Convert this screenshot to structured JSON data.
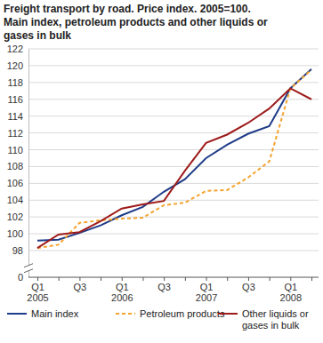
{
  "chart_data": {
    "type": "line",
    "title": [
      "Freight transport by road. Price index. 2005=100.",
      "Main index, petroleum products and other liquids or",
      "gases in bulk"
    ],
    "categories": [
      "Q1 2005",
      null,
      "Q3",
      null,
      "Q1 2006",
      null,
      "Q3",
      null,
      "Q1 2007",
      null,
      "Q3",
      null,
      "Q1 2008",
      null
    ],
    "series": [
      {
        "name": "Main index",
        "color": "#1f3c88",
        "line_style": "solid",
        "values": [
          99.2,
          99.3,
          100.1,
          101.0,
          102.2,
          103.2,
          105.0,
          106.5,
          109.0,
          110.6,
          111.9,
          112.8,
          117.3,
          119.6
        ]
      },
      {
        "name": "Petroleum products",
        "color": "#f4a22d",
        "line_style": "dashed",
        "values": [
          98.3,
          98.7,
          101.3,
          101.6,
          101.8,
          101.9,
          103.4,
          103.7,
          105.1,
          105.2,
          106.7,
          108.6,
          117.3,
          119.5
        ]
      },
      {
        "name": "Other liquids or gases in bulk",
        "color": "#9e1b1b",
        "line_style": "solid",
        "values": [
          98.3,
          99.9,
          100.2,
          101.5,
          103.0,
          103.5,
          103.9,
          107.5,
          110.8,
          111.8,
          113.2,
          114.9,
          117.3,
          116.0
        ]
      }
    ],
    "ylim": [
      0,
      122
    ],
    "yticks": [
      0,
      98,
      100,
      102,
      104,
      106,
      108,
      110,
      112,
      114,
      116,
      118,
      120,
      122
    ],
    "grid": true,
    "legend": "bottom"
  }
}
